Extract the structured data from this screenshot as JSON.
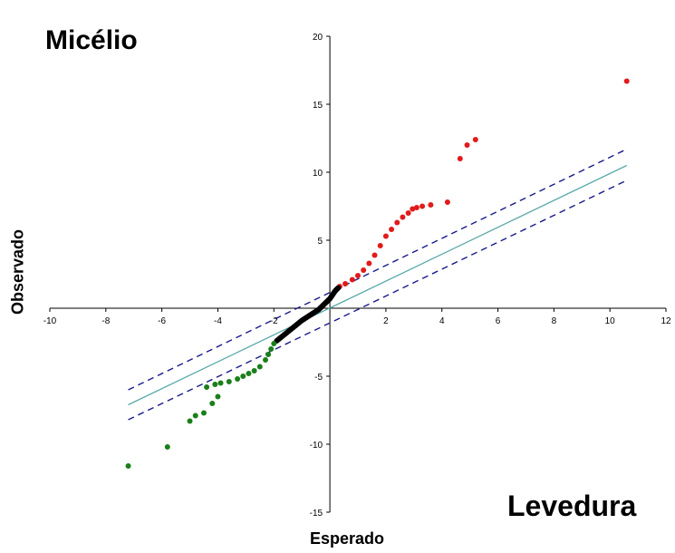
{
  "chart_data": {
    "type": "scatter",
    "title": "",
    "corner_label_top_left": "Micélio",
    "corner_label_bottom_right": "Levedura",
    "xlabel": "Esperado",
    "ylabel": "Observado",
    "xlim": [
      -10,
      12
    ],
    "ylim": [
      -15,
      20
    ],
    "x_ticks": [
      -10,
      -8,
      -6,
      -4,
      -2,
      2,
      4,
      6,
      8,
      10,
      12
    ],
    "y_ticks": [
      -15,
      -10,
      -5,
      5,
      10,
      15,
      20
    ],
    "grid": false,
    "reference_line": {
      "color": "#5aa9a9",
      "from": [
        -7.2,
        -7.1
      ],
      "to": [
        10.6,
        10.5
      ]
    },
    "confidence_bands": {
      "color": "#1a1a8c",
      "style": "dashed",
      "upper": {
        "from": [
          -7.2,
          -6.0
        ],
        "to": [
          10.6,
          11.7
        ]
      },
      "lower": {
        "from": [
          -7.2,
          -8.2
        ],
        "to": [
          10.6,
          9.4
        ]
      }
    },
    "series": [
      {
        "color": "#e11b1b",
        "points": [
          [
            10.6,
            16.7
          ],
          [
            5.2,
            12.4
          ],
          [
            4.9,
            12.0
          ],
          [
            4.65,
            11.0
          ],
          [
            4.2,
            7.8
          ],
          [
            3.6,
            7.6
          ],
          [
            3.3,
            7.5
          ],
          [
            3.1,
            7.4
          ],
          [
            2.95,
            7.3
          ],
          [
            2.8,
            7.0
          ],
          [
            2.6,
            6.7
          ],
          [
            2.4,
            6.3
          ],
          [
            2.2,
            5.8
          ],
          [
            2.0,
            5.3
          ],
          [
            1.8,
            4.6
          ],
          [
            1.6,
            3.9
          ],
          [
            1.4,
            3.3
          ],
          [
            1.2,
            2.8
          ],
          [
            1.0,
            2.4
          ],
          [
            0.8,
            2.1
          ],
          [
            0.55,
            1.8
          ],
          [
            0.35,
            1.6
          ]
        ]
      },
      {
        "color": "#000000",
        "points": [
          [
            0.3,
            1.5
          ],
          [
            0.2,
            1.3
          ],
          [
            0.1,
            1.0
          ],
          [
            0.0,
            0.7
          ],
          [
            -0.1,
            0.5
          ],
          [
            -0.2,
            0.3
          ],
          [
            -0.3,
            0.1
          ],
          [
            -0.4,
            -0.1
          ],
          [
            -0.55,
            -0.3
          ],
          [
            -0.7,
            -0.5
          ],
          [
            -0.85,
            -0.7
          ],
          [
            -1.0,
            -0.9
          ],
          [
            -1.15,
            -1.15
          ],
          [
            -1.3,
            -1.4
          ],
          [
            -1.45,
            -1.65
          ],
          [
            -1.6,
            -1.9
          ],
          [
            -1.75,
            -2.15
          ],
          [
            -1.9,
            -2.4
          ]
        ]
      },
      {
        "color": "#1a7f1a",
        "points": [
          [
            -2.0,
            -2.6
          ],
          [
            -2.1,
            -3.0
          ],
          [
            -2.2,
            -3.4
          ],
          [
            -2.3,
            -3.8
          ],
          [
            -2.5,
            -4.3
          ],
          [
            -2.7,
            -4.6
          ],
          [
            -2.9,
            -4.8
          ],
          [
            -3.1,
            -5.0
          ],
          [
            -3.3,
            -5.2
          ],
          [
            -3.6,
            -5.4
          ],
          [
            -3.9,
            -5.5
          ],
          [
            -4.1,
            -5.6
          ],
          [
            -4.4,
            -5.8
          ],
          [
            -4.0,
            -6.5
          ],
          [
            -4.2,
            -7.0
          ],
          [
            -4.5,
            -7.7
          ],
          [
            -4.8,
            -7.9
          ],
          [
            -5.0,
            -8.3
          ],
          [
            -5.8,
            -10.2
          ],
          [
            -7.2,
            -11.6
          ]
        ]
      }
    ]
  }
}
